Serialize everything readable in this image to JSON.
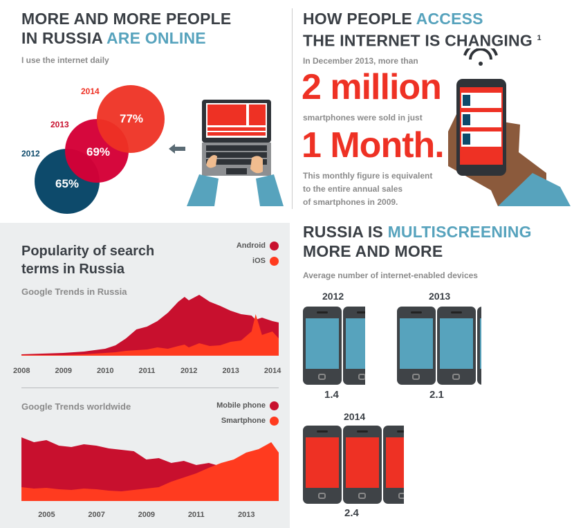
{
  "online": {
    "title_line1": "MORE AND MORE PEOPLE",
    "title_line2_pre": "IN RUSSIA",
    "title_line2_accent": "ARE ONLINE",
    "subtitle": "I use the internet daily",
    "circles": [
      {
        "year": "2014",
        "value": 77,
        "label": "77%",
        "color": "#ee3124",
        "year_color": "#ee3124"
      },
      {
        "year": "2013",
        "value": 69,
        "label": "69%",
        "color": "#d50037",
        "year_color": "#c8102e"
      },
      {
        "year": "2012",
        "value": 65,
        "label": "65%",
        "color": "#0d4a6b",
        "year_color": "#0d4a6b"
      }
    ]
  },
  "access": {
    "title_line1_pre": "HOW PEOPLE",
    "title_line1_accent": "ACCESS",
    "title_line2": "THE INTERNET IS CHANGING",
    "footnote": "1",
    "text1": "In December 2013, more than",
    "big1": "2 million",
    "text2": "smartphones were sold in just",
    "big2": "1 Month.",
    "text3_line1": "This monthly figure is equivalent",
    "text3_line2": "to the entire annual sales",
    "text3_line3": "of smartphones in 2009."
  },
  "multiscreen": {
    "title_line1_pre": "RUSSIA IS",
    "title_line1_accent": "MULTISCREENING",
    "title_line2": "MORE AND MORE",
    "subtitle": "Average number of internet-enabled devices",
    "groups": [
      {
        "year": "2012",
        "value": 1.4,
        "label": "1.4",
        "screen_color": "#57a3bd"
      },
      {
        "year": "2013",
        "value": 2.1,
        "label": "2.1",
        "screen_color": "#57a3bd"
      },
      {
        "year": "2014",
        "value": 2.4,
        "label": "2.4",
        "screen_color": "#ee3124"
      }
    ]
  },
  "search": {
    "title_line1": "Popularity of search",
    "title_line2": "terms in Russia",
    "colors": {
      "dark": "#c8102e",
      "light": "#ff3b1f",
      "text": "#3a3f45"
    }
  },
  "chart_data": [
    {
      "type": "area",
      "title": "Popularity of search terms in Russia",
      "subtitle": "Google Trends in Russia",
      "legend": [
        "Android",
        "iOS"
      ],
      "xticks": [
        "2008",
        "2009",
        "2010",
        "2011",
        "2012",
        "2013",
        "2014"
      ],
      "ylim": [
        0,
        100
      ],
      "x": [
        2008.0,
        2008.5,
        2009.0,
        2009.5,
        2010.0,
        2010.25,
        2010.5,
        2010.75,
        2011.0,
        2011.25,
        2011.5,
        2011.75,
        2011.9,
        2012.0,
        2012.25,
        2012.5,
        2012.75,
        2013.0,
        2013.25,
        2013.5,
        2013.6,
        2013.75,
        2014.0,
        2014.15
      ],
      "series": [
        {
          "name": "Android",
          "color": "#c8102e",
          "values": [
            2,
            3,
            4,
            6,
            10,
            15,
            25,
            38,
            42,
            50,
            62,
            78,
            85,
            80,
            88,
            78,
            72,
            65,
            60,
            58,
            52,
            55,
            50,
            48
          ]
        },
        {
          "name": "iOS",
          "color": "#ff3b1f",
          "values": [
            1,
            1,
            1,
            2,
            4,
            5,
            7,
            8,
            9,
            12,
            10,
            14,
            16,
            12,
            18,
            14,
            15,
            20,
            22,
            35,
            60,
            30,
            35,
            25
          ]
        }
      ]
    },
    {
      "type": "area",
      "subtitle": "Google Trends worldwide",
      "legend": [
        "Mobile phone",
        "Smartphone"
      ],
      "xticks": [
        "2005",
        "2007",
        "2009",
        "2011",
        "2013"
      ],
      "ylim": [
        0,
        100
      ],
      "x": [
        2004.0,
        2004.5,
        2005.0,
        2005.5,
        2006.0,
        2006.5,
        2007.0,
        2007.5,
        2008.0,
        2008.5,
        2009.0,
        2009.5,
        2010.0,
        2010.5,
        2011.0,
        2011.5,
        2012.0,
        2012.5,
        2013.0,
        2013.5,
        2014.0,
        2014.3
      ],
      "series": [
        {
          "name": "Mobile phone",
          "color": "#c8102e",
          "values": [
            92,
            85,
            88,
            80,
            78,
            82,
            80,
            76,
            74,
            72,
            60,
            62,
            55,
            58,
            52,
            55,
            50,
            52,
            48,
            50,
            52,
            45
          ]
        },
        {
          "name": "Smartphone",
          "color": "#ff3b1f",
          "values": [
            20,
            18,
            19,
            17,
            16,
            18,
            17,
            15,
            14,
            16,
            18,
            20,
            28,
            34,
            40,
            48,
            55,
            60,
            70,
            75,
            85,
            70
          ]
        }
      ]
    }
  ]
}
